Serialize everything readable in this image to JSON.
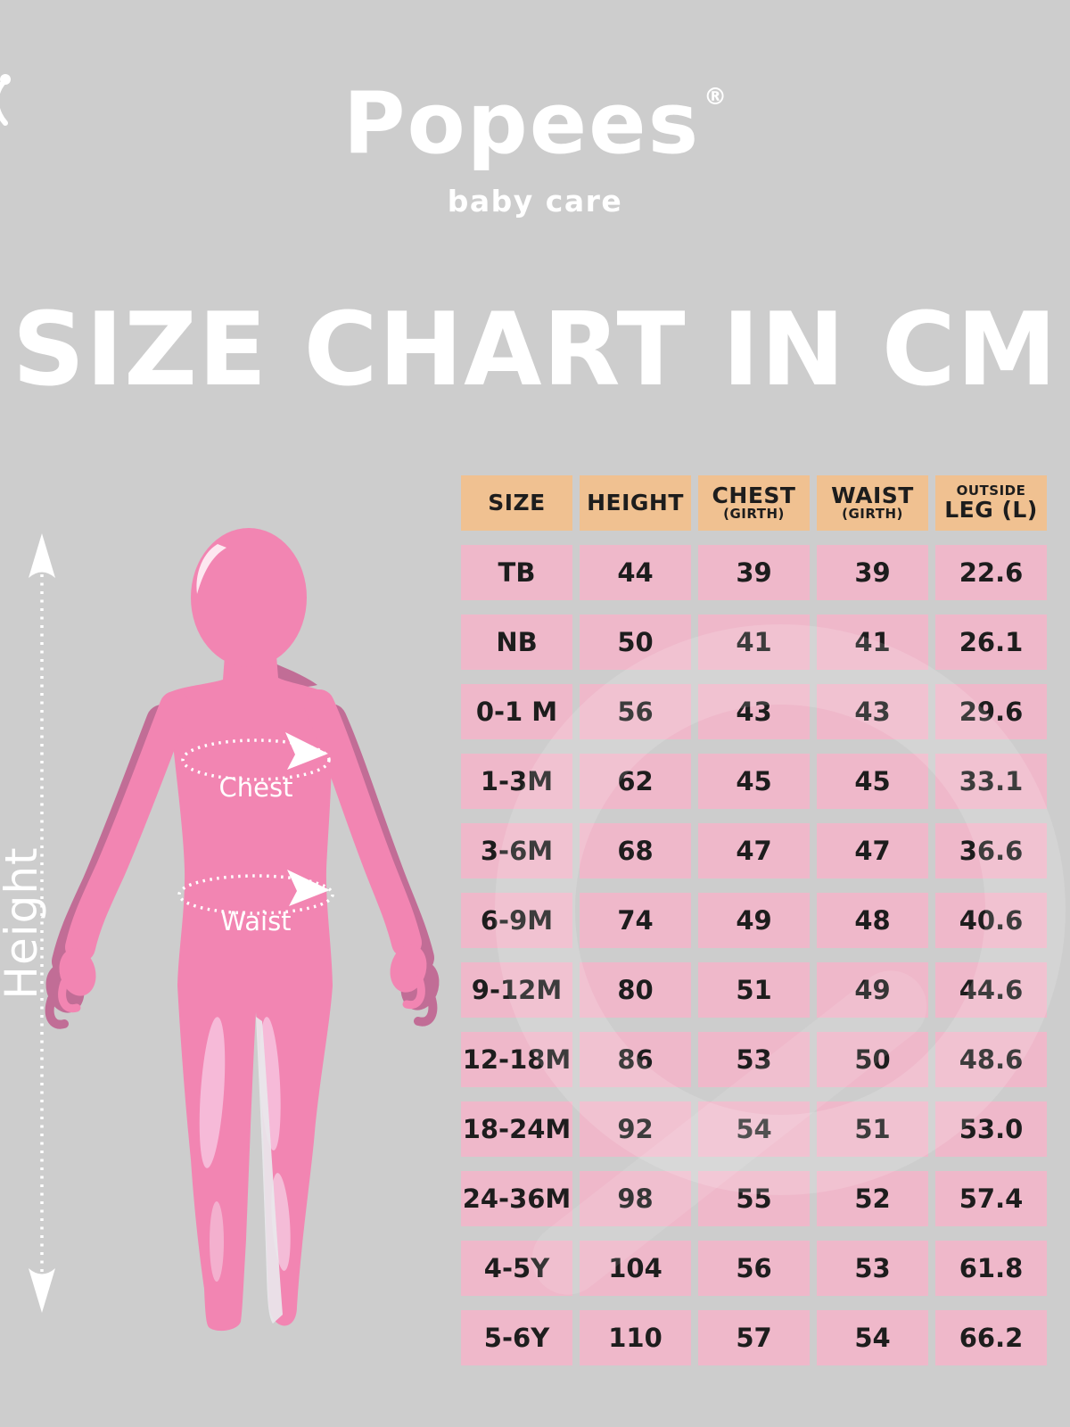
{
  "brand": {
    "name": "Popees",
    "registered": "®",
    "tagline": "baby care"
  },
  "title": "SIZE CHART IN CM",
  "figure_labels": {
    "height": "Height",
    "chest": "Chest",
    "waist": "Waist"
  },
  "table": {
    "headers": [
      {
        "line1": "SIZE",
        "style1": "lg"
      },
      {
        "line1": "HEIGHT",
        "style1": "lg"
      },
      {
        "line1": "CHEST",
        "style1": "lg",
        "line2": "(GIRTH)",
        "style2": "sm"
      },
      {
        "line1": "WAIST",
        "style1": "lg",
        "line2": "(GIRTH)",
        "style2": "sm"
      },
      {
        "line1": "OUTSIDE",
        "style1": "sm",
        "line2": "LEG (L)",
        "style2": "lg"
      }
    ],
    "rows": [
      [
        "TB",
        "44",
        "39",
        "39",
        "22.6"
      ],
      [
        "NB",
        "50",
        "41",
        "41",
        "26.1"
      ],
      [
        "0-1 M",
        "56",
        "43",
        "43",
        "29.6"
      ],
      [
        "1-3M",
        "62",
        "45",
        "45",
        "33.1"
      ],
      [
        "3-6M",
        "68",
        "47",
        "47",
        "36.6"
      ],
      [
        "6-9M",
        "74",
        "49",
        "48",
        "40.6"
      ],
      [
        "9-12M",
        "80",
        "51",
        "49",
        "44.6"
      ],
      [
        "12-18M",
        "86",
        "53",
        "50",
        "48.6"
      ],
      [
        "18-24M",
        "92",
        "54",
        "51",
        "53.0"
      ],
      [
        "24-36M",
        "98",
        "55",
        "52",
        "57.4"
      ],
      [
        "4-5Y",
        "104",
        "56",
        "53",
        "61.8"
      ],
      [
        "5-6Y",
        "110",
        "57",
        "54",
        "66.2"
      ]
    ]
  },
  "chart_data": {
    "type": "table",
    "title": "SIZE CHART IN CM",
    "columns": [
      "SIZE",
      "HEIGHT",
      "CHEST (GIRTH)",
      "WAIST (GIRTH)",
      "OUTSIDE LEG (L)"
    ],
    "rows": [
      [
        "TB",
        44,
        39,
        39,
        22.6
      ],
      [
        "NB",
        50,
        41,
        41,
        26.1
      ],
      [
        "0-1 M",
        56,
        43,
        43,
        29.6
      ],
      [
        "1-3M",
        62,
        45,
        45,
        33.1
      ],
      [
        "3-6M",
        68,
        47,
        47,
        36.6
      ],
      [
        "6-9M",
        74,
        49,
        48,
        40.6
      ],
      [
        "9-12M",
        80,
        51,
        49,
        44.6
      ],
      [
        "12-18M",
        86,
        53,
        50,
        48.6
      ],
      [
        "18-24M",
        92,
        54,
        51,
        53.0
      ],
      [
        "24-36M",
        98,
        55,
        52,
        57.4
      ],
      [
        "4-5Y",
        104,
        56,
        53,
        61.8
      ],
      [
        "5-6Y",
        110,
        57,
        54,
        66.2
      ]
    ],
    "units": "cm"
  },
  "colors": {
    "background": "#cdcdcd",
    "header_bg": "#f0c191",
    "cell_bg": "#efb8ca",
    "cell_text": "#1d1d1d",
    "white": "#ffffff",
    "figure_pink": "#f285b2",
    "figure_shadow": "#c16d96",
    "figure_highlight": "#f6bad8",
    "figure_highlight_soft": "#f4c2da",
    "figure_white": "#e9e9ec"
  }
}
